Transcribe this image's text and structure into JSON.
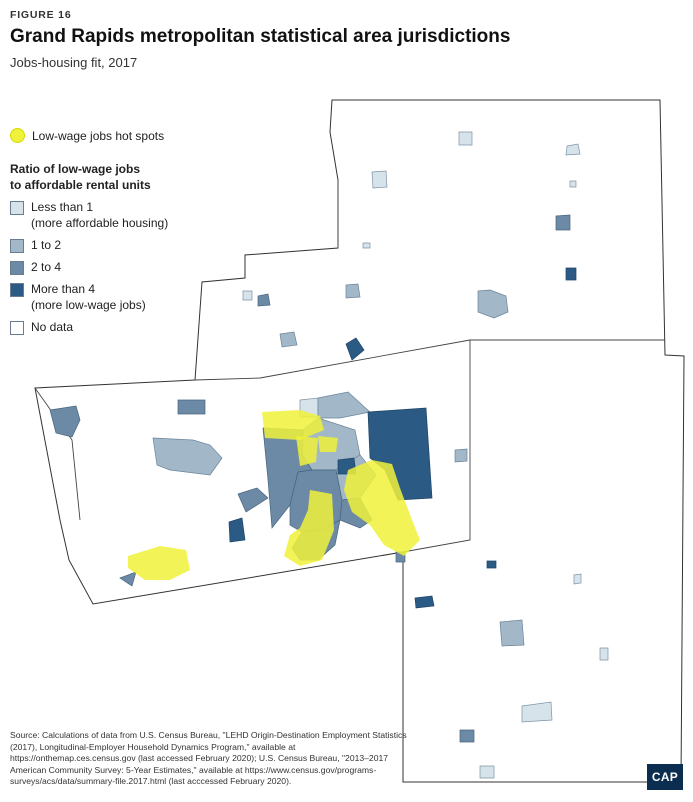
{
  "header": {
    "figure_label": "FIGURE 16",
    "title": "Grand Rapids metropolitan statistical area jurisdictions",
    "subtitle": "Jobs-housing fit, 2017"
  },
  "legend": {
    "hotspots_label": "Low-wage jobs hot spots",
    "hotspots_color": "#f0f13a",
    "ratio_title_line1": "Ratio of low-wage jobs",
    "ratio_title_line2": "to affordable rental units",
    "items": [
      {
        "label": "Less than 1",
        "sublabel": "(more affordable housing)",
        "color": "#d7e3ea"
      },
      {
        "label": "1 to 2",
        "sublabel": "",
        "color": "#a2b7c8"
      },
      {
        "label": "2 to 4",
        "sublabel": "",
        "color": "#6c8aa6"
      },
      {
        "label": "More than 4",
        "sublabel": "(more low-wage jobs)",
        "color": "#2b5a85"
      },
      {
        "label": "No data",
        "sublabel": "",
        "color": "#ffffff"
      }
    ]
  },
  "source": {
    "text": "Source: Calculations of data from U.S. Census Bureau, \"LEHD Origin-Destination Employment Statistics (2017), Longitudinal-Employer Household Dynamics Program,\" available at https://onthemap.ces.census.gov (last accessed February 2020); U.S. Census Bureau, \"2013–2017 American Community Survey: 5-Year Estimates,\" available at https://www.census.gov/programs-surveys/acs/data/summary-file.2017.html (last acccessed February 2020)."
  },
  "logo": {
    "text": "CAP",
    "color": "#0b2d4f"
  }
}
